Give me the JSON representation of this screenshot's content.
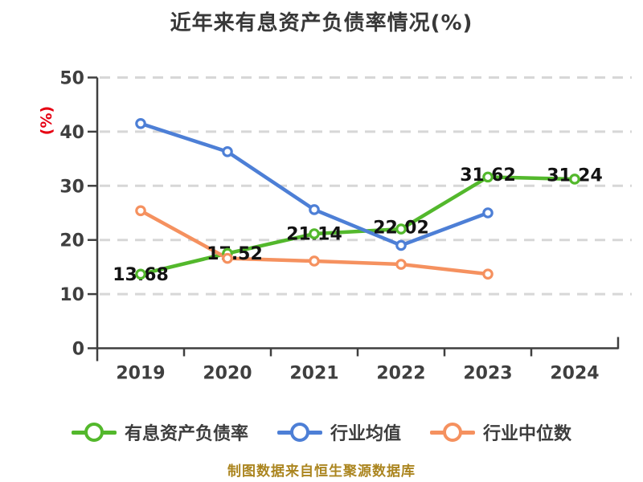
{
  "chart_data": {
    "type": "line",
    "title": "近年来有息资产负债率情况(%)",
    "ylabel": "(%)",
    "ylabel_color": "#e60012",
    "source_note": "制图数据来自恒生聚源数据库",
    "source_note_color": "#ab851f",
    "categories": [
      "2019",
      "2020",
      "2021",
      "2022",
      "2023",
      "2024"
    ],
    "ylim": [
      0,
      50
    ],
    "yticks": [
      0,
      10,
      20,
      30,
      40,
      50
    ],
    "grid": "horizontal-dashed",
    "grid_color": "#d7d7d7",
    "axis_color": "#3f3f3f",
    "legend_position": "bottom",
    "series": [
      {
        "name": "有息资产负债率",
        "color": "#53b82c",
        "values": [
          13.68,
          17.52,
          21.14,
          22.02,
          31.62,
          31.24
        ],
        "labeled": true
      },
      {
        "name": "行业均值",
        "color": "#4d7fd6",
        "values": [
          41.5,
          36.3,
          25.6,
          19.0,
          25.0
        ],
        "labeled": false
      },
      {
        "name": "行业中位数",
        "color": "#f5915f",
        "values": [
          25.4,
          16.6,
          16.1,
          15.5,
          13.7
        ],
        "labeled": false
      }
    ]
  }
}
